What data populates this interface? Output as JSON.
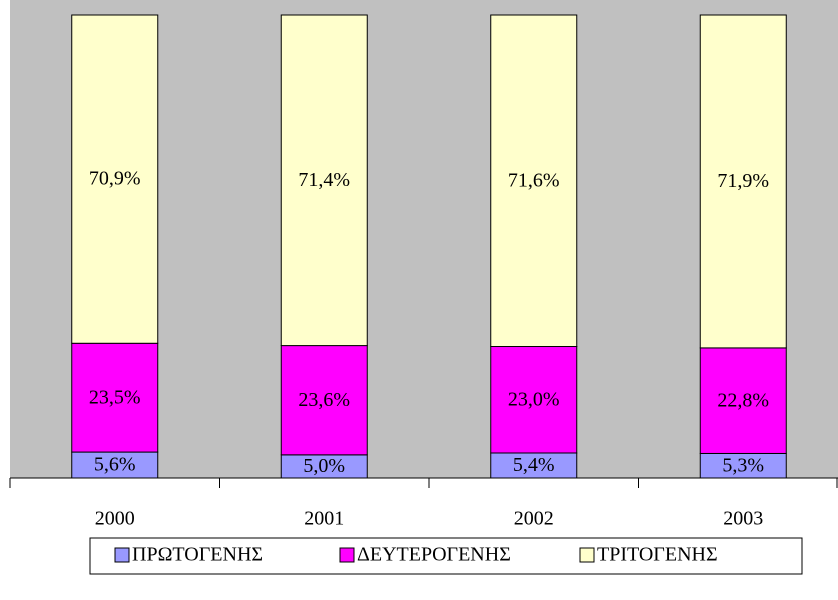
{
  "chart_data": {
    "type": "stacked_bar",
    "categories": [
      "2000",
      "2001",
      "2002",
      "2003"
    ],
    "series": [
      {
        "name": "ΠΡΩΤΟΓΕΝΗΣ",
        "color": "#9999ff",
        "values": [
          5.6,
          5.0,
          5.4,
          5.3
        ],
        "value_labels": [
          "5,6%",
          "5,0%",
          "5,4%",
          "5,3%"
        ]
      },
      {
        "name": "ΔΕΥΤΕΡΟΓΕΝΗΣ",
        "color": "#ff00ff",
        "values": [
          23.5,
          23.6,
          23.0,
          22.8
        ],
        "value_labels": [
          "23,5%",
          "23,6%",
          "23,0%",
          "22,8%"
        ]
      },
      {
        "name": "ΤΡΙΤΟΓΕΝΗΣ",
        "color": "#ffffcc",
        "values": [
          70.9,
          71.4,
          71.6,
          71.9
        ],
        "value_labels": [
          "70,9%",
          "71,4%",
          "71,6%",
          "71,9%"
        ]
      }
    ],
    "ylim": [
      0,
      100
    ],
    "legend": "bottom",
    "background": "#c0c0c0"
  }
}
